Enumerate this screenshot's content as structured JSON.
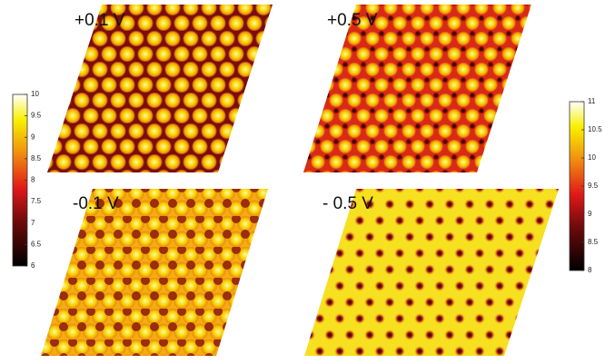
{
  "panels": [
    {
      "label": "+0.1 V"
    },
    {
      "label": "+0.5 V"
    },
    {
      "label": "-0.1 V"
    },
    {
      "label": "- 0.5 V"
    }
  ],
  "colorbars": [
    {
      "ticks": [
        6,
        6.5,
        7,
        7.5,
        8,
        8.5,
        9,
        9.5,
        10
      ]
    },
    {
      "ticks": [
        8,
        8.5,
        9,
        9.5,
        10,
        10.5,
        11
      ]
    }
  ]
}
